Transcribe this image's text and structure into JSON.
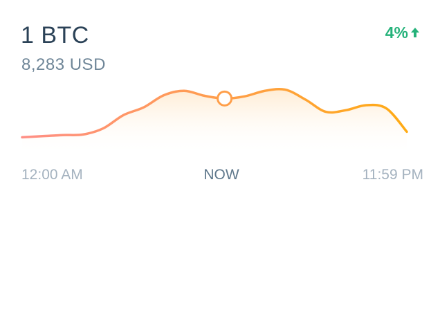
{
  "header": {
    "amount": "1 BTC",
    "fiat_value": "8,283 USD",
    "change_label": "4%",
    "change_direction": "up",
    "change_color": "#25b27a"
  },
  "timeline": {
    "start_label": "12:00 AM",
    "current_label": "NOW",
    "end_label": "11:59 PM"
  },
  "chart_data": {
    "type": "line",
    "title": "",
    "xlabel": "",
    "ylabel": "",
    "x_tick_labels": [
      "12:00 AM",
      "NOW",
      "11:59 PM"
    ],
    "values": [
      0.12,
      0.14,
      0.16,
      0.17,
      0.28,
      0.52,
      0.66,
      0.88,
      0.96,
      0.87,
      0.82,
      0.86,
      0.96,
      0.98,
      0.8,
      0.58,
      0.61,
      0.7,
      0.64,
      0.22
    ],
    "current_index": 10,
    "y_range": [
      0,
      1
    ],
    "grid": false,
    "colors": {
      "start": "#ff8f86",
      "end": "#ffab14",
      "fill": "#ffe9cc"
    }
  }
}
